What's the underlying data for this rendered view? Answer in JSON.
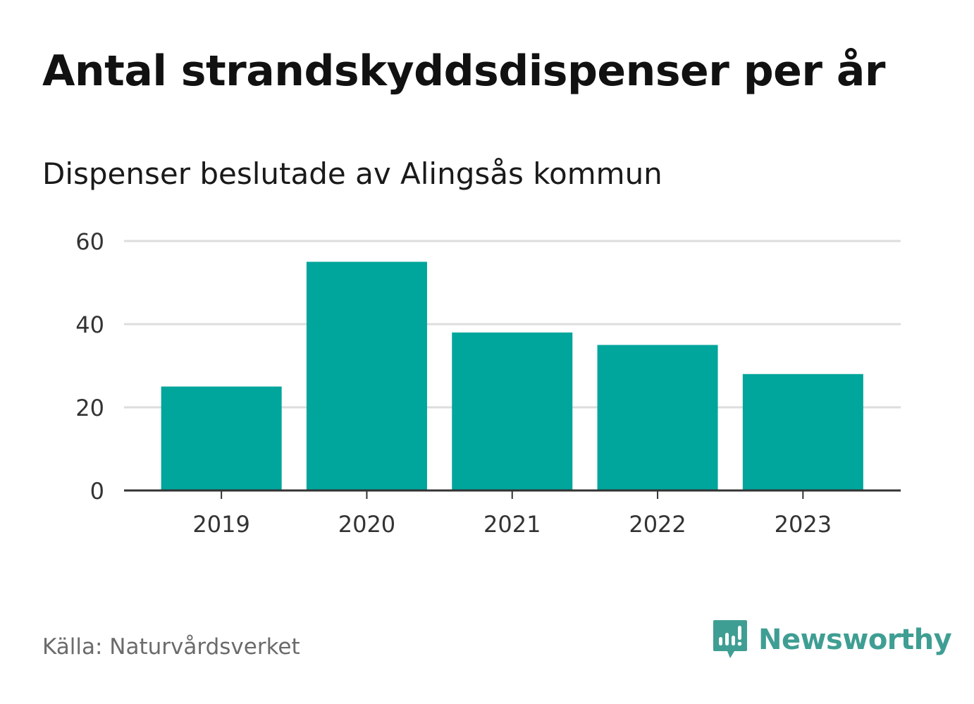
{
  "title": "Antal strandskyddsdispenser per år",
  "subtitle": "Dispenser beslutade av Alingsås kommun",
  "source": "Källa: Naturvårdsverket",
  "brand": {
    "name": "Newsworthy",
    "icon": "newsworthy-logo-icon"
  },
  "colors": {
    "bar": "#00a59b",
    "grid": "#dddddd",
    "axis": "#333333",
    "brand": "#3f9e93"
  },
  "chart_data": {
    "type": "bar",
    "categories": [
      "2019",
      "2020",
      "2021",
      "2022",
      "2023"
    ],
    "values": [
      25,
      55,
      38,
      35,
      28
    ],
    "ylim": [
      0,
      60
    ],
    "yticks": [
      0,
      20,
      40,
      60
    ],
    "title": "Antal strandskyddsdispenser per år",
    "xlabel": "",
    "ylabel": "",
    "grid": true
  }
}
